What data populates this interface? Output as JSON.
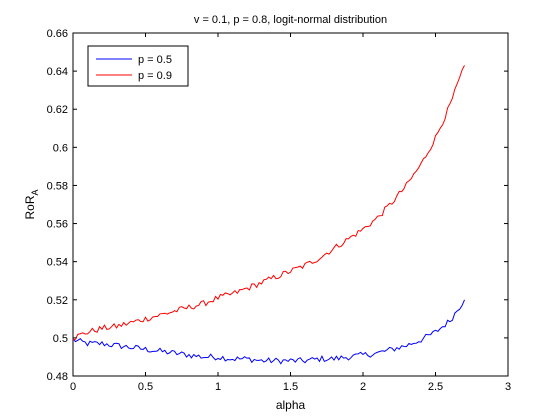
{
  "chart_data": {
    "type": "line",
    "title": "v = 0.1, p = 0.8, logit-normal distribution",
    "xlabel": "alpha",
    "ylabel_main": "RoR",
    "ylabel_sub": "A",
    "xlim": [
      0,
      3
    ],
    "ylim": [
      0.48,
      0.66
    ],
    "xticks": [
      0,
      0.5,
      1,
      1.5,
      2,
      2.5,
      3
    ],
    "xtick_labels": [
      "0",
      "0.5",
      "1",
      "1.5",
      "2",
      "2.5",
      "3"
    ],
    "yticks": [
      0.48,
      0.5,
      0.52,
      0.54,
      0.56,
      0.58,
      0.6,
      0.62,
      0.64,
      0.66
    ],
    "ytick_labels": [
      "0.48",
      "0.5",
      "0.52",
      "0.54",
      "0.56",
      "0.58",
      "0.6",
      "0.62",
      "0.64",
      "0.66"
    ],
    "grid": false,
    "legend_position": "top-left",
    "series": [
      {
        "name": "p = 0.5",
        "color": "#0000ff",
        "x": [
          0.0,
          0.1,
          0.2,
          0.3,
          0.4,
          0.5,
          0.6,
          0.7,
          0.8,
          0.9,
          1.0,
          1.1,
          1.2,
          1.3,
          1.4,
          1.5,
          1.6,
          1.7,
          1.8,
          1.9,
          2.0,
          2.1,
          2.2,
          2.3,
          2.4,
          2.5,
          2.6,
          2.7
        ],
        "values": [
          0.499,
          0.497,
          0.497,
          0.496,
          0.495,
          0.494,
          0.493,
          0.492,
          0.491,
          0.49,
          0.49,
          0.489,
          0.489,
          0.488,
          0.488,
          0.488,
          0.488,
          0.489,
          0.489,
          0.49,
          0.491,
          0.492,
          0.494,
          0.496,
          0.499,
          0.503,
          0.509,
          0.52
        ]
      },
      {
        "name": "p = 0.9",
        "color": "#ff0000",
        "x": [
          0.0,
          0.1,
          0.2,
          0.3,
          0.4,
          0.5,
          0.6,
          0.7,
          0.8,
          0.9,
          1.0,
          1.1,
          1.2,
          1.3,
          1.4,
          1.5,
          1.6,
          1.7,
          1.8,
          1.9,
          2.0,
          2.1,
          2.2,
          2.3,
          2.4,
          2.5,
          2.6,
          2.7
        ],
        "values": [
          0.5,
          0.503,
          0.505,
          0.506,
          0.508,
          0.51,
          0.512,
          0.514,
          0.516,
          0.518,
          0.521,
          0.523,
          0.526,
          0.529,
          0.532,
          0.535,
          0.538,
          0.542,
          0.547,
          0.552,
          0.557,
          0.563,
          0.571,
          0.58,
          0.591,
          0.605,
          0.622,
          0.643
        ]
      }
    ]
  }
}
